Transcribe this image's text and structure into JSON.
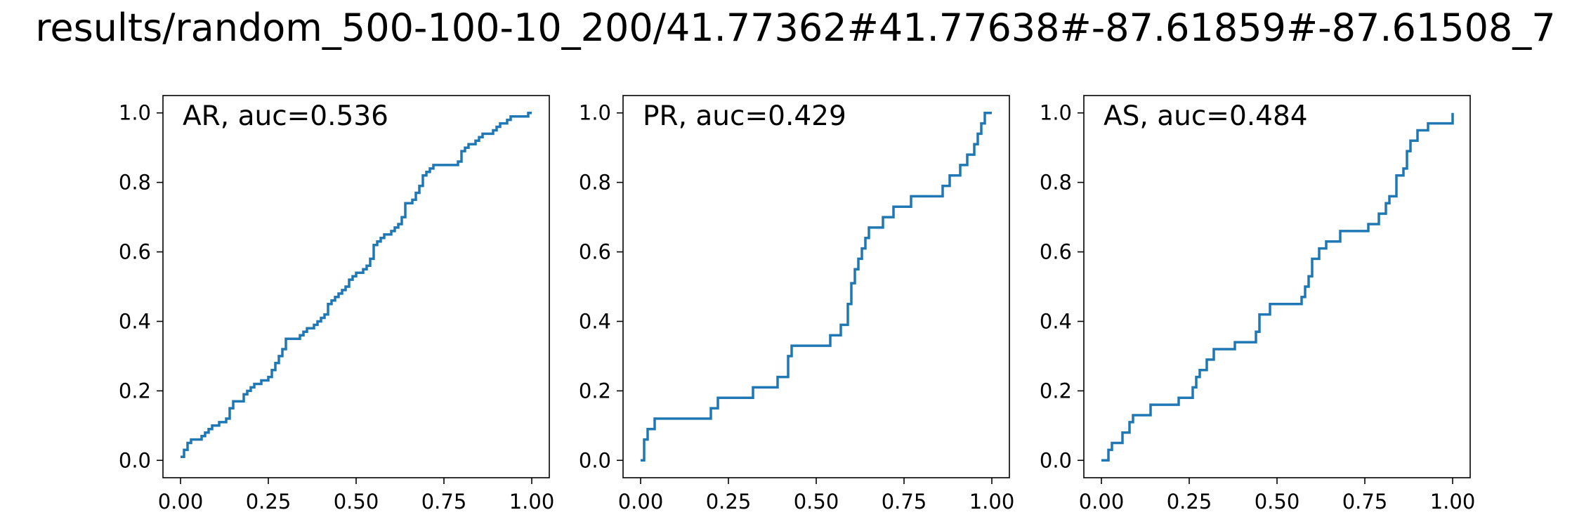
{
  "figure": {
    "title": "results/random_500-100-10_200/41.77362#41.77638#-87.61859#-87.61508_7",
    "line_color": "#1f77b4"
  },
  "chart_data": [
    {
      "type": "line",
      "step": "post",
      "label": "AR, auc=0.536",
      "xlim": [
        -0.05,
        1.05
      ],
      "ylim": [
        -0.05,
        1.05
      ],
      "xticks": [
        "0.00",
        "0.25",
        "0.50",
        "0.75",
        "1.00"
      ],
      "yticks": [
        "0.0",
        "0.2",
        "0.4",
        "0.6",
        "0.8",
        "1.0"
      ],
      "legend": "none",
      "grid": false,
      "x": [
        0.0,
        0.01,
        0.02,
        0.03,
        0.06,
        0.07,
        0.08,
        0.09,
        0.1,
        0.11,
        0.13,
        0.14,
        0.15,
        0.18,
        0.19,
        0.2,
        0.21,
        0.22,
        0.23,
        0.24,
        0.25,
        0.26,
        0.27,
        0.28,
        0.29,
        0.3,
        0.34,
        0.35,
        0.36,
        0.37,
        0.38,
        0.39,
        0.4,
        0.41,
        0.42,
        0.43,
        0.44,
        0.45,
        0.46,
        0.47,
        0.48,
        0.49,
        0.5,
        0.51,
        0.52,
        0.53,
        0.54,
        0.55,
        0.56,
        0.57,
        0.58,
        0.59,
        0.6,
        0.61,
        0.62,
        0.63,
        0.64,
        0.65,
        0.66,
        0.67,
        0.68,
        0.69,
        0.7,
        0.71,
        0.72,
        0.73,
        0.74,
        0.75,
        0.79,
        0.8,
        0.81,
        0.82,
        0.83,
        0.84,
        0.85,
        0.86,
        0.87,
        0.88,
        0.89,
        0.9,
        0.91,
        0.92,
        0.93,
        0.94,
        0.95,
        0.98,
        0.99,
        1.0
      ],
      "y": [
        0.01,
        0.03,
        0.05,
        0.06,
        0.07,
        0.08,
        0.09,
        0.1,
        0.1,
        0.11,
        0.12,
        0.15,
        0.17,
        0.19,
        0.2,
        0.21,
        0.22,
        0.22,
        0.23,
        0.23,
        0.24,
        0.26,
        0.28,
        0.3,
        0.32,
        0.35,
        0.36,
        0.37,
        0.38,
        0.38,
        0.39,
        0.4,
        0.41,
        0.42,
        0.45,
        0.46,
        0.47,
        0.48,
        0.49,
        0.5,
        0.52,
        0.53,
        0.54,
        0.54,
        0.55,
        0.56,
        0.58,
        0.62,
        0.63,
        0.64,
        0.65,
        0.65,
        0.66,
        0.67,
        0.68,
        0.7,
        0.74,
        0.74,
        0.75,
        0.77,
        0.79,
        0.82,
        0.83,
        0.84,
        0.85,
        0.85,
        0.85,
        0.85,
        0.86,
        0.89,
        0.9,
        0.91,
        0.91,
        0.92,
        0.93,
        0.94,
        0.94,
        0.94,
        0.95,
        0.96,
        0.97,
        0.97,
        0.98,
        0.99,
        0.99,
        0.99,
        1.0,
        1.0
      ]
    },
    {
      "type": "line",
      "step": "post",
      "label": "PR, auc=0.429",
      "xlim": [
        -0.05,
        1.05
      ],
      "ylim": [
        -0.05,
        1.05
      ],
      "xticks": [
        "0.00",
        "0.25",
        "0.50",
        "0.75",
        "1.00"
      ],
      "yticks": [
        "0.0",
        "0.2",
        "0.4",
        "0.6",
        "0.8",
        "1.0"
      ],
      "legend": "none",
      "grid": false,
      "x": [
        0.0,
        0.01,
        0.02,
        0.04,
        0.05,
        0.2,
        0.22,
        0.32,
        0.39,
        0.42,
        0.43,
        0.54,
        0.57,
        0.59,
        0.6,
        0.61,
        0.62,
        0.63,
        0.64,
        0.65,
        0.66,
        0.69,
        0.72,
        0.77,
        0.86,
        0.88,
        0.91,
        0.93,
        0.95,
        0.96,
        0.97,
        0.98,
        1.0
      ],
      "y": [
        0.0,
        0.06,
        0.09,
        0.12,
        0.12,
        0.15,
        0.18,
        0.21,
        0.24,
        0.3,
        0.33,
        0.36,
        0.39,
        0.45,
        0.51,
        0.55,
        0.58,
        0.61,
        0.64,
        0.67,
        0.67,
        0.7,
        0.73,
        0.76,
        0.79,
        0.82,
        0.85,
        0.88,
        0.91,
        0.94,
        0.97,
        1.0,
        1.0
      ]
    },
    {
      "type": "line",
      "step": "post",
      "label": "AS, auc=0.484",
      "xlim": [
        -0.05,
        1.05
      ],
      "ylim": [
        -0.05,
        1.05
      ],
      "xticks": [
        "0.00",
        "0.25",
        "0.50",
        "0.75",
        "1.00"
      ],
      "yticks": [
        "0.0",
        "0.2",
        "0.4",
        "0.6",
        "0.8",
        "1.0"
      ],
      "legend": "none",
      "grid": false,
      "x": [
        0.0,
        0.02,
        0.03,
        0.06,
        0.08,
        0.09,
        0.14,
        0.22,
        0.26,
        0.27,
        0.28,
        0.3,
        0.32,
        0.38,
        0.44,
        0.45,
        0.48,
        0.57,
        0.58,
        0.59,
        0.6,
        0.62,
        0.64,
        0.68,
        0.76,
        0.79,
        0.81,
        0.82,
        0.84,
        0.86,
        0.87,
        0.88,
        0.9,
        0.93,
        1.0
      ],
      "y": [
        0.0,
        0.03,
        0.05,
        0.08,
        0.11,
        0.13,
        0.16,
        0.18,
        0.21,
        0.24,
        0.26,
        0.29,
        0.32,
        0.34,
        0.37,
        0.42,
        0.45,
        0.47,
        0.5,
        0.53,
        0.58,
        0.61,
        0.63,
        0.66,
        0.68,
        0.71,
        0.74,
        0.76,
        0.82,
        0.84,
        0.89,
        0.92,
        0.95,
        0.97,
        1.0
      ]
    }
  ]
}
